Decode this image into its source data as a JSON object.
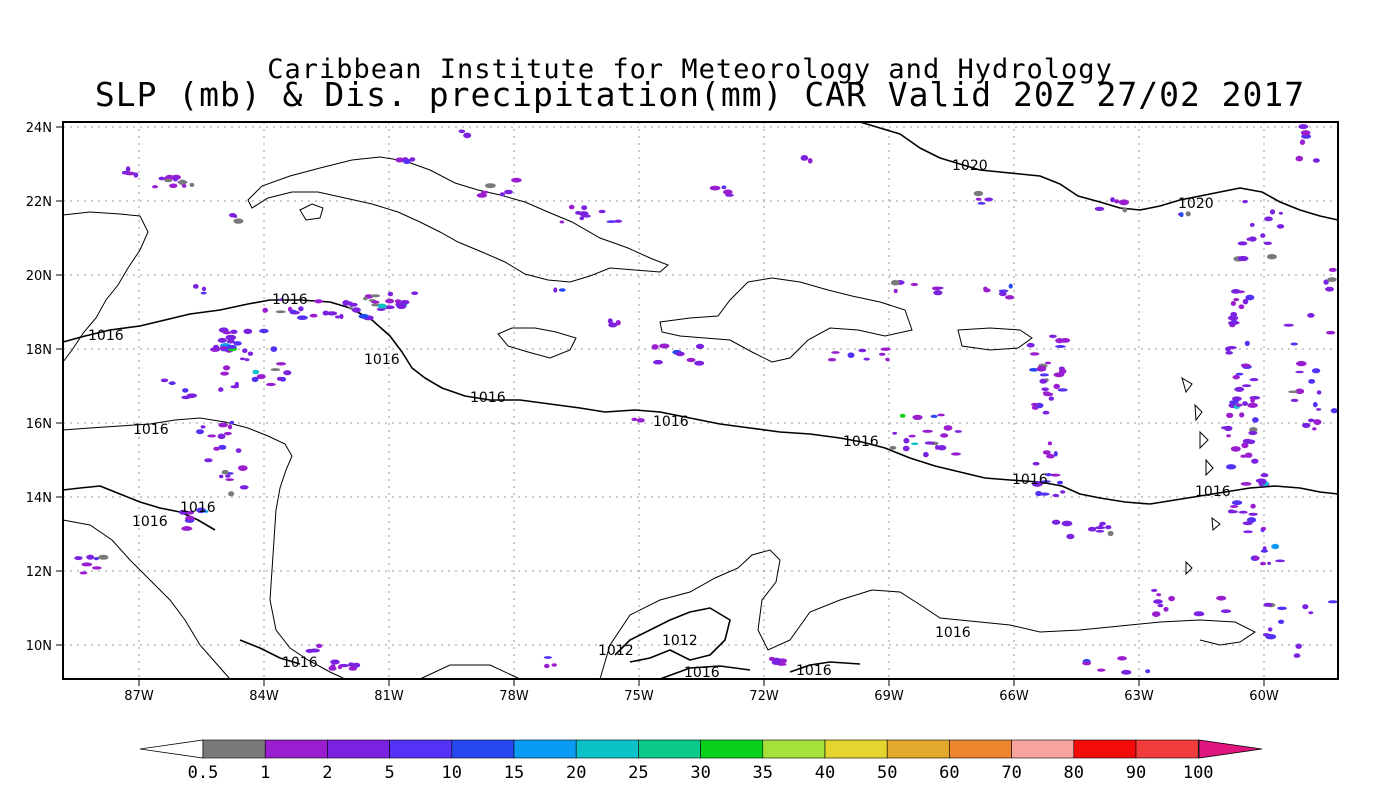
{
  "title": {
    "line1": "Caribbean Institute for Meteorology and Hydrology",
    "line2": "SLP (mb) & Dis. precipitation(mm) CAR Valid 20Z 27/02 2017"
  },
  "axes": {
    "lon_ticks": [
      "87W",
      "84W",
      "81W",
      "78W",
      "75W",
      "72W",
      "69W",
      "66W",
      "63W",
      "60W"
    ],
    "lat_ticks": [
      "24N",
      "22N",
      "20N",
      "18N",
      "16N",
      "14N",
      "12N",
      "10N"
    ]
  },
  "isobar_labels": [
    "1020",
    "1020",
    "1016",
    "1016",
    "1016",
    "1016",
    "1016",
    "1016",
    "1016",
    "1016",
    "1016",
    "1016",
    "1016",
    "1016",
    "1016",
    "1012",
    "1012",
    "1016",
    "1016"
  ],
  "colorbar": {
    "labels": [
      "0.5",
      "1",
      "2",
      "5",
      "10",
      "15",
      "20",
      "25",
      "30",
      "35",
      "40",
      "50",
      "60",
      "70",
      "80",
      "90",
      "100"
    ],
    "colors": [
      "#7a7a7a",
      "#9a1ecf",
      "#7b22e0",
      "#5530f5",
      "#2648f0",
      "#0a9cf5",
      "#0ac2c8",
      "#0acb8a",
      "#0ad11a",
      "#a6e23a",
      "#e6d52e",
      "#e3a92c",
      "#ee8630",
      "#f7a3a0",
      "#f50a0a",
      "#f23c3c"
    ],
    "lower_color": "#ffffff",
    "upper_color": "#e0167e"
  },
  "precip_colors": [
    "#7b22e0",
    "#9a1ecf",
    "#5530f5",
    "#7a7a7a",
    "#2648f0",
    "#0a9cf5",
    "#0ad11a",
    "#0ac2c8"
  ]
}
